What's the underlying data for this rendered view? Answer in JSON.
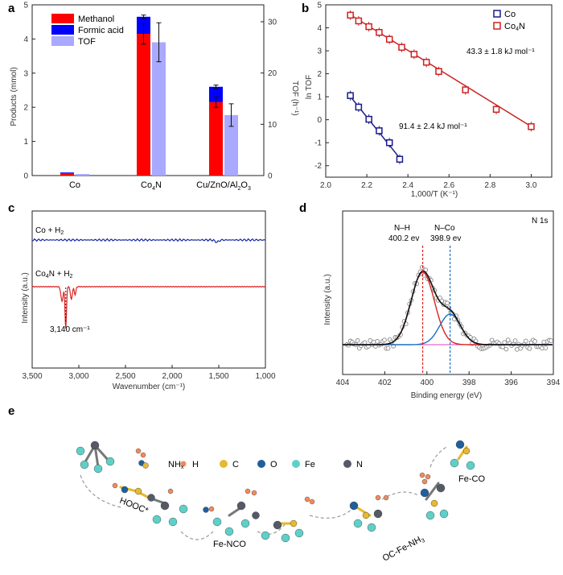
{
  "panels": {
    "a": {
      "label": "a",
      "chart_data": {
        "type": "bar",
        "categories": [
          "Co",
          "Co4N",
          "Cu/ZnO/Al2O3"
        ],
        "category_labels": [
          [
            "Co",
            ""
          ],
          [
            "Co",
            "4",
            "N"
          ],
          [
            "Cu/ZnO/Al",
            "2",
            "O",
            "3"
          ]
        ],
        "ylabel": "Products (mmol)",
        "y2label": "TOF (h⁻¹)",
        "ylim": [
          0,
          5
        ],
        "y2lim": [
          0,
          33.3
        ],
        "yticks": [
          "0",
          "1",
          "2",
          "3",
          "4",
          "5"
        ],
        "y2ticks": [
          "0",
          "10",
          "20",
          "30"
        ],
        "series": [
          {
            "name": "Methanol",
            "values": [
              0.07,
              4.15,
              2.15
            ],
            "err": [
              0,
              0.3,
              0.15
            ],
            "color": "#ff0000",
            "axis": "left"
          },
          {
            "name": "Formic acid",
            "values": [
              0.02,
              0.5,
              0.45
            ],
            "err": [
              0,
              0.05,
              0.05
            ],
            "color": "#0000ff",
            "axis": "left",
            "stacked_on": "Methanol"
          },
          {
            "name": "TOF",
            "values": [
              0.3,
              26.0,
              11.8
            ],
            "err": [
              0,
              3.8,
              2.2
            ],
            "color": "#a9a9ff",
            "axis": "right"
          }
        ]
      }
    },
    "b": {
      "label": "b",
      "chart_data": {
        "type": "scatter",
        "xlabel": "1,000/T (K⁻¹)",
        "ylabel": "ln TOF",
        "xlim": [
          2.0,
          3.1
        ],
        "ylim": [
          -2.5,
          5
        ],
        "xticks": [
          "2.0",
          "2.2",
          "2.4",
          "2.6",
          "2.8",
          "3.0"
        ],
        "yticks": [
          "-2",
          "-1",
          "0",
          "1",
          "2",
          "3",
          "4",
          "5"
        ],
        "series": [
          {
            "name": "Co",
            "color": "#1a1a8c",
            "x": [
              2.12,
              2.16,
              2.21,
              2.26,
              2.31,
              2.36
            ],
            "y": [
              1.05,
              0.55,
              0.02,
              -0.48,
              -1.0,
              -1.72
            ],
            "fit": [
              [
                2.11,
                1.12
              ],
              [
                2.37,
                -1.78
              ]
            ],
            "annotation": "91.4 ± 2.4 kJ mol⁻¹"
          },
          {
            "name": "Co4N",
            "color": "#cc2222",
            "x": [
              2.12,
              2.16,
              2.21,
              2.26,
              2.31,
              2.37,
              2.43,
              2.49,
              2.55,
              2.68,
              2.83,
              3.0
            ],
            "y": [
              4.55,
              4.3,
              4.05,
              3.8,
              3.5,
              3.15,
              2.85,
              2.5,
              2.1,
              1.3,
              0.45,
              -0.3
            ],
            "fit": [
              [
                2.11,
                4.62
              ],
              [
                3.01,
                -0.35
              ]
            ],
            "annotation": "43.3 ± 1.8 kJ mol⁻¹"
          }
        ],
        "legend": [
          "Co",
          "Co4N"
        ]
      }
    },
    "c": {
      "label": "c",
      "chart_data": {
        "type": "line",
        "xlabel": "Wavenumber (cm⁻¹)",
        "ylabel": "Intensity (a.u.)",
        "xlim": [
          3500,
          1000
        ],
        "xticks": [
          "3,500",
          "3,000",
          "2,500",
          "2,000",
          "1,500",
          "1,000"
        ],
        "series": [
          {
            "name": "Co + H2",
            "color": "#1a2aa0"
          },
          {
            "name": "Co4N + H2",
            "color": "#dd2222"
          }
        ],
        "annotation": "3,140 cm⁻¹"
      }
    },
    "d": {
      "label": "d",
      "chart_data": {
        "type": "line",
        "title": "N 1s",
        "xlabel": "Binding energy (eV)",
        "ylabel": "Intensity (a.u.)",
        "xlim": [
          404,
          394
        ],
        "xticks": [
          "404",
          "402",
          "400",
          "398",
          "396",
          "394"
        ],
        "peaks": [
          {
            "label": "N–H",
            "value": "400.2 ev",
            "position": 400.2,
            "color": "#dd2222"
          },
          {
            "label": "N–Co",
            "value": "398.9 ev",
            "position": 398.9,
            "color": "#1a6fc0"
          }
        ]
      }
    },
    "e": {
      "label": "e",
      "legend": [
        {
          "name": "H",
          "color": "#f08a5d"
        },
        {
          "name": "C",
          "color": "#e6b92e"
        },
        {
          "name": "O",
          "color": "#1f5f9e"
        },
        {
          "name": "Fe",
          "color": "#5ed0c8"
        },
        {
          "name": "N",
          "color": "#555a66"
        }
      ],
      "labels": {
        "hooc": "HOOC*",
        "nhx_main": "NH",
        "nhx_sub": "x",
        "fe_nco": "Fe-NCO",
        "oc_fe_nh3_main": "OC-Fe-NH",
        "oc_fe_nh3_sub": "3",
        "fe_co": "Fe-CO"
      }
    }
  }
}
